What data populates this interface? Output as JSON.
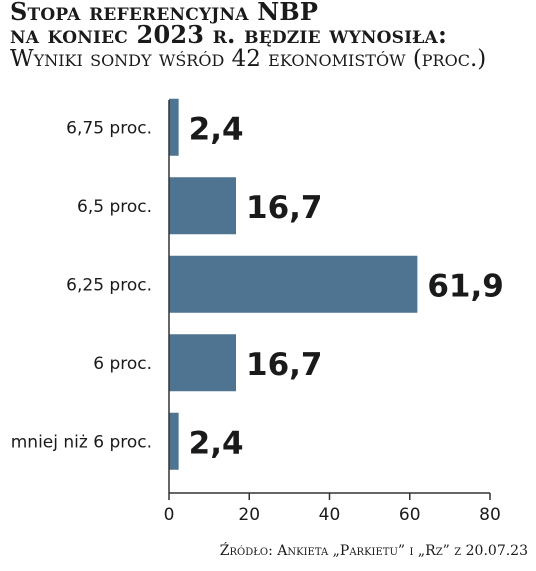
{
  "title_line1": "Stopa referencyjna NBP",
  "title_line2": "na koniec 2023 r. będzie wynosiła:",
  "subtitle": "Wyniki sondy wśród 42 ekonomistów (proc.)",
  "source": "Źródło: Ankieta „Parkietu” i „Rz” z 20.07.23",
  "colors": {
    "bar": "#4f7491",
    "axis": "#333333",
    "text": "#1a1a1a"
  },
  "chart_data": {
    "type": "bar",
    "orientation": "horizontal",
    "categories": [
      "6,75 proc.",
      "6,5 proc.",
      "6,25 proc.",
      "6 proc.",
      "mniej niż 6 proc."
    ],
    "values": [
      2.4,
      16.7,
      61.9,
      16.7,
      2.4
    ],
    "value_labels": [
      "2,4",
      "16,7",
      "61,9",
      "16,7",
      "2,4"
    ],
    "xlim": [
      0,
      80
    ],
    "xticks": [
      0,
      20,
      40,
      60,
      80
    ],
    "grid": false,
    "legend": "none"
  }
}
